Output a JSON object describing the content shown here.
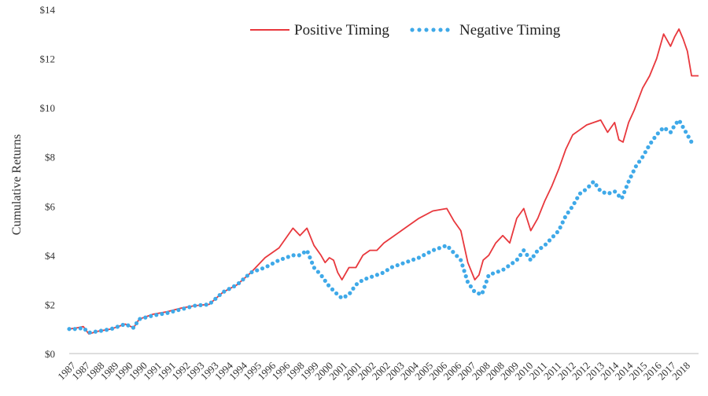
{
  "chart_data": {
    "type": "line",
    "title": "",
    "xlabel": "",
    "ylabel": "Cumulative Returns",
    "ylim": [
      0,
      14
    ],
    "y_ticks": [
      0,
      2,
      4,
      6,
      8,
      10,
      12,
      14
    ],
    "y_tick_labels": [
      "$0",
      "$2",
      "$4",
      "$6",
      "$8",
      "$10",
      "$12",
      "$14"
    ],
    "x_tick_labels": [
      "1987",
      "1987",
      "1988",
      "1989",
      "1990",
      "1990",
      "1991",
      "1991",
      "1992",
      "1993",
      "1993",
      "1994",
      "1994",
      "1995",
      "1996",
      "1996",
      "1998",
      "1999",
      "2000",
      "2001",
      "2001",
      "2002",
      "2002",
      "2003",
      "2004",
      "2005",
      "2006",
      "2006",
      "2007",
      "2008",
      "2008",
      "2009",
      "2010",
      "2011",
      "2011",
      "2012",
      "2012",
      "2013",
      "2014",
      "2014",
      "2015",
      "2016",
      "2017",
      "2018"
    ],
    "legend_position": "top-center",
    "grid": false,
    "series": [
      {
        "name": "Positive Timing",
        "color": "#e8383d",
        "style": "solid",
        "x": [
          0,
          0.6,
          1.0,
          1.4,
          2,
          3,
          4,
          4.6,
          5,
          6,
          7,
          8,
          9,
          10,
          11,
          12,
          13,
          14,
          15,
          16,
          16.5,
          17,
          17.5,
          18,
          18.3,
          18.6,
          18.9,
          19.2,
          19.5,
          20,
          20.5,
          21,
          21.5,
          22,
          22.5,
          23,
          24,
          25,
          26,
          27,
          27.5,
          28,
          28.5,
          29,
          29.3,
          29.6,
          30,
          30.5,
          31,
          31.5,
          32,
          32.5,
          33,
          33.5,
          34,
          34.5,
          35,
          35.5,
          36,
          36.5,
          37,
          37.5,
          38,
          38.5,
          39,
          39.3,
          39.6,
          40,
          40.4,
          41,
          41.5,
          42,
          42.5,
          43,
          43.3,
          43.6,
          43.9,
          44.2,
          44.5,
          44.8,
          45
        ],
        "y": [
          1.0,
          1.05,
          1.1,
          0.8,
          0.9,
          1.0,
          1.2,
          1.05,
          1.4,
          1.6,
          1.7,
          1.85,
          1.95,
          2.0,
          2.5,
          2.8,
          3.3,
          3.9,
          4.3,
          5.1,
          4.8,
          5.1,
          4.4,
          4.0,
          3.7,
          3.9,
          3.8,
          3.3,
          3.0,
          3.5,
          3.5,
          4.0,
          4.2,
          4.2,
          4.5,
          4.7,
          5.1,
          5.5,
          5.8,
          5.9,
          5.4,
          5.0,
          3.7,
          3.0,
          3.2,
          3.8,
          4.0,
          4.5,
          4.8,
          4.5,
          5.5,
          5.9,
          5.0,
          5.5,
          6.2,
          6.8,
          7.5,
          8.3,
          8.9,
          9.1,
          9.3,
          9.4,
          9.5,
          9.0,
          9.4,
          8.7,
          8.6,
          9.4,
          9.9,
          10.8,
          11.3,
          12.0,
          13.0,
          12.5,
          12.9,
          13.2,
          12.8,
          12.3,
          11.3,
          11.3,
          11.3
        ],
        "x_note": ""
      },
      {
        "name": "Negative Timing",
        "color": "#3fa9e8",
        "style": "dotted",
        "x": [
          0,
          0.6,
          1.0,
          1.4,
          2,
          3,
          4,
          4.6,
          5,
          6,
          7,
          8,
          9,
          10,
          11,
          12,
          13,
          14,
          15,
          16,
          16.5,
          17,
          17.5,
          18,
          18.5,
          19,
          19.5,
          20,
          20.5,
          21,
          21.5,
          22,
          22.5,
          23,
          24,
          25,
          26,
          27,
          27.5,
          28,
          28.5,
          29,
          29.5,
          30,
          31,
          32,
          32.5,
          33,
          33.5,
          34,
          35,
          35.5,
          36,
          36.5,
          37,
          37.5,
          38,
          38.5,
          39,
          39.5,
          40,
          40.5,
          41,
          41.5,
          42,
          42.5,
          43,
          43.3,
          43.6,
          43.9,
          44.2,
          44.5,
          44.8
        ],
        "y": [
          1.0,
          1.0,
          1.05,
          0.85,
          0.9,
          1.0,
          1.2,
          1.05,
          1.4,
          1.55,
          1.65,
          1.8,
          1.95,
          2.0,
          2.5,
          2.8,
          3.3,
          3.5,
          3.8,
          4.0,
          4.0,
          4.2,
          3.5,
          3.2,
          2.8,
          2.5,
          2.25,
          2.4,
          2.8,
          3.0,
          3.1,
          3.2,
          3.3,
          3.5,
          3.7,
          3.9,
          4.2,
          4.4,
          4.1,
          3.8,
          2.9,
          2.5,
          2.4,
          3.2,
          3.4,
          3.8,
          4.2,
          3.8,
          4.2,
          4.4,
          5.0,
          5.6,
          6.0,
          6.5,
          6.7,
          7.0,
          6.6,
          6.5,
          6.6,
          6.3,
          7.0,
          7.6,
          8.0,
          8.5,
          8.9,
          9.2,
          9.0,
          9.3,
          9.5,
          9.2,
          8.9,
          8.6,
          8.6
        ],
        "x_note": ""
      }
    ]
  }
}
